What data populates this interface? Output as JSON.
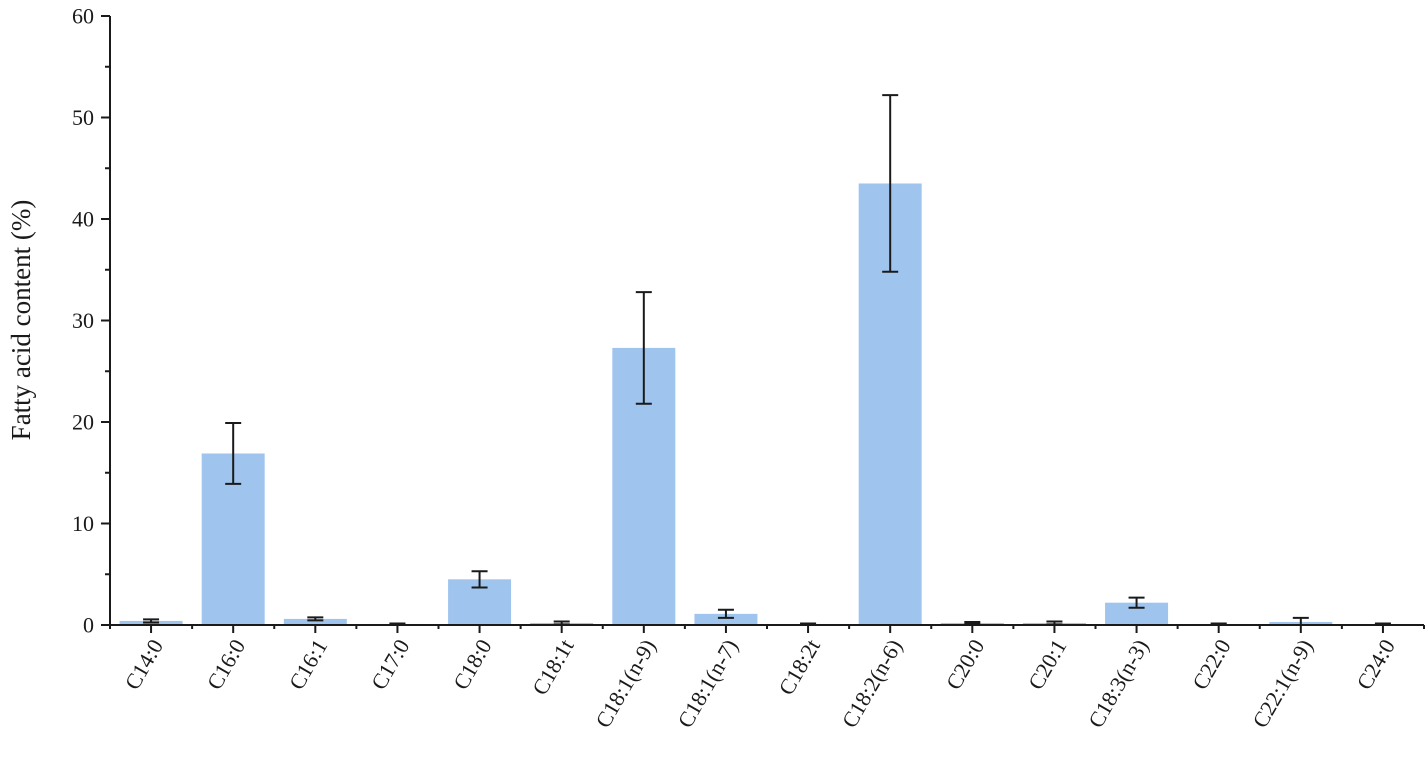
{
  "chart_data": {
    "type": "bar",
    "title": "",
    "xlabel": "",
    "ylabel": "Fatty acid content (%)",
    "ylim": [
      0,
      60
    ],
    "yticks": [
      0,
      10,
      20,
      30,
      40,
      50,
      60
    ],
    "grid": false,
    "legend": "none",
    "colors": {
      "bar": "#9fc5ef",
      "axis": "#1a1a1a"
    },
    "categories": [
      "C14:0",
      "C16:0",
      "C16:1",
      "C17:0",
      "C18:0",
      "C18:1t",
      "C18:1(n-9)",
      "C18:1(n-7)",
      "C18:2t",
      "C18:2(n-6)",
      "C20:0",
      "C20:1",
      "C18:3(n-3)",
      "C22:0",
      "C22:1(n-9)",
      "C24:0"
    ],
    "values": [
      0.4,
      16.9,
      0.6,
      0.1,
      4.5,
      0.2,
      27.3,
      1.1,
      0.1,
      43.5,
      0.2,
      0.2,
      2.2,
      0.1,
      0.3,
      0.1
    ],
    "errors": [
      0.15,
      3.0,
      0.15,
      0.05,
      0.8,
      0.15,
      5.5,
      0.4,
      0.05,
      8.7,
      0.1,
      0.15,
      0.5,
      0.05,
      0.4,
      0.05
    ]
  }
}
